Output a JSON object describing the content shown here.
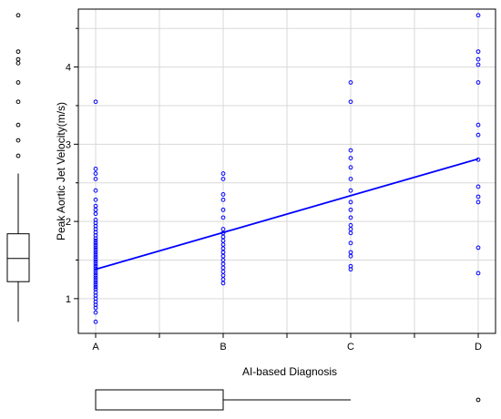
{
  "chart_data": {
    "type": "scatter",
    "xlabel": "AI-based Diagnosis",
    "ylabel": "Peak Aortic Jet Velocity(m/s)",
    "categories": [
      "A",
      "B",
      "C",
      "D"
    ],
    "y_ticks": [
      1,
      2,
      3,
      4
    ],
    "ylim": [
      0.55,
      4.75
    ],
    "grid": true,
    "point_color": "#0000ff",
    "line_color": "#0000ff",
    "regression_line": {
      "from": {
        "x": "A",
        "y": 1.38
      },
      "to": {
        "x": "D",
        "y": 2.81
      }
    },
    "series": [
      {
        "category": "A",
        "values": [
          0.7,
          0.82,
          0.88,
          0.92,
          0.96,
          1.0,
          1.04,
          1.08,
          1.12,
          1.15,
          1.18,
          1.21,
          1.24,
          1.27,
          1.3,
          1.33,
          1.36,
          1.39,
          1.42,
          1.45,
          1.48,
          1.51,
          1.54,
          1.57,
          1.6,
          1.63,
          1.66,
          1.69,
          1.72,
          1.75,
          1.78,
          1.82,
          1.86,
          1.9,
          1.94,
          1.98,
          2.02,
          2.1,
          2.15,
          2.2,
          2.28,
          2.4,
          2.55,
          2.62,
          2.68,
          3.55
        ]
      },
      {
        "category": "B",
        "values": [
          1.2,
          1.25,
          1.3,
          1.35,
          1.4,
          1.45,
          1.5,
          1.55,
          1.6,
          1.65,
          1.7,
          1.75,
          1.8,
          1.85,
          1.9,
          2.05,
          2.15,
          2.28,
          2.35,
          2.55,
          2.62
        ]
      },
      {
        "category": "C",
        "values": [
          1.38,
          1.42,
          1.55,
          1.6,
          1.72,
          1.85,
          1.9,
          1.95,
          2.05,
          2.15,
          2.25,
          2.4,
          2.55,
          2.7,
          2.82,
          2.92,
          3.55,
          3.8
        ]
      },
      {
        "category": "D",
        "values": [
          1.33,
          1.66,
          2.25,
          2.32,
          2.45,
          2.8,
          3.12,
          3.25,
          3.8,
          4.03,
          4.1,
          4.2,
          4.67
        ]
      }
    ],
    "y_marginal_boxplot": {
      "min": 0.7,
      "q1": 1.22,
      "median": 1.52,
      "q3": 1.84,
      "whisker_high": 2.62,
      "outliers": [
        2.85,
        3.05,
        3.25,
        3.55,
        3.8,
        4.05,
        4.1,
        4.2,
        4.67
      ]
    },
    "x_marginal_boxplot": {
      "min": "A",
      "q1": "A",
      "median": "A",
      "q3": "B",
      "whisker_high": "C",
      "outliers": [
        "D"
      ]
    }
  }
}
